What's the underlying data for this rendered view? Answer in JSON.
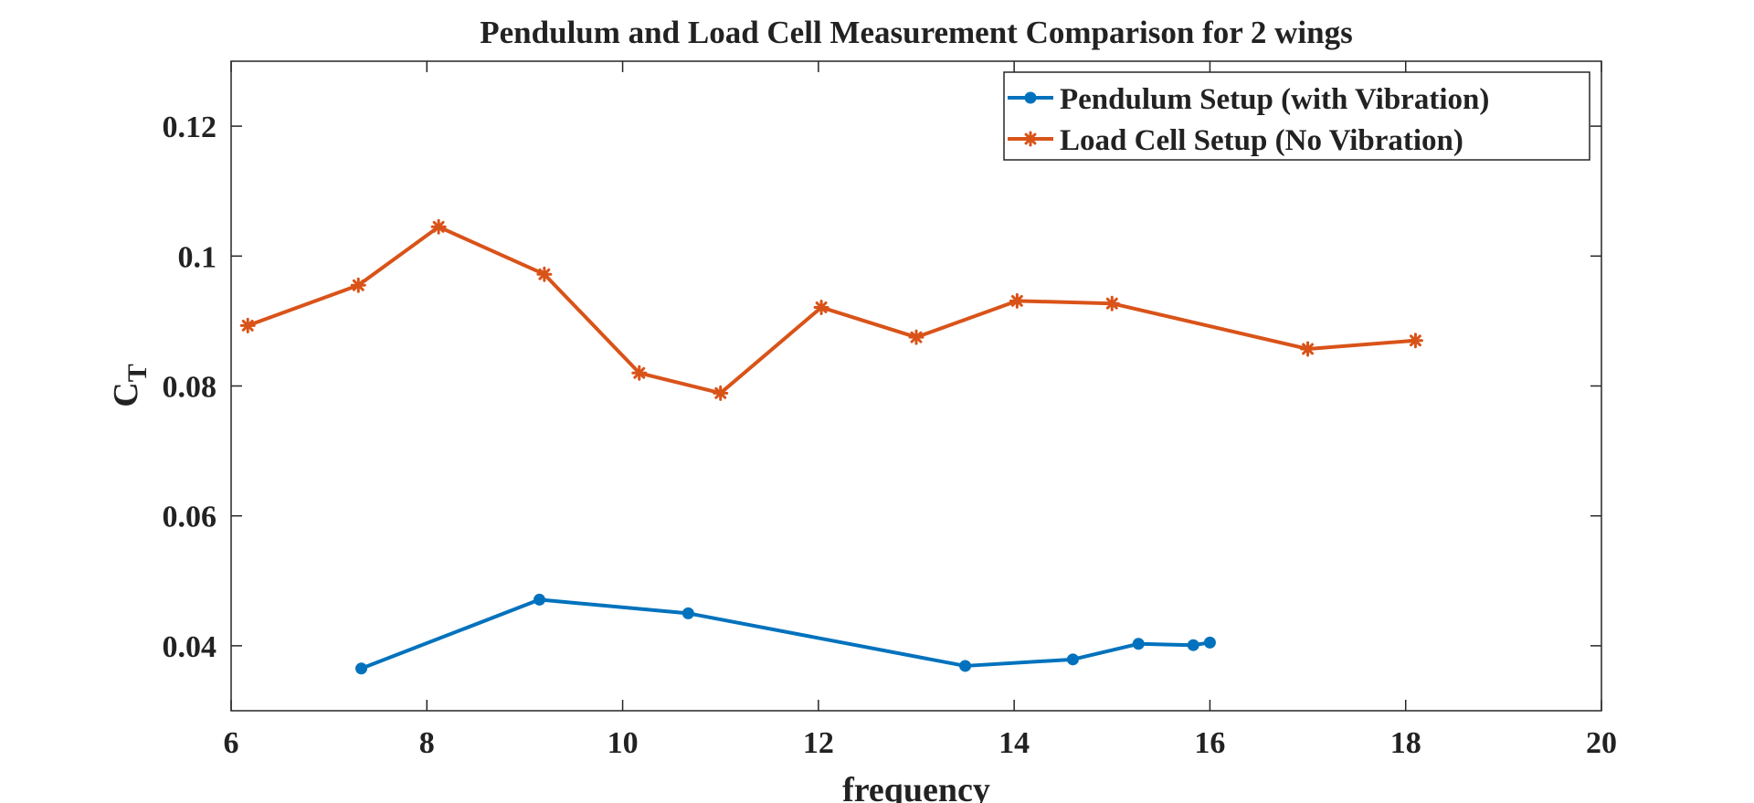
{
  "chart_data": {
    "type": "line",
    "title": "Pendulum and Load Cell Measurement Comparison for 2 wings",
    "xlabel": "frequency",
    "ylabel": "C",
    "ylabel_subscript": "T",
    "xlim": [
      6,
      20
    ],
    "ylim": [
      0.03,
      0.13
    ],
    "xticks": [
      6,
      8,
      10,
      12,
      14,
      16,
      18,
      20
    ],
    "yticks": [
      0.04,
      0.06,
      0.08,
      0.1,
      0.12
    ],
    "ytick_labels": [
      "0.04",
      "0.06",
      "0.08",
      "0.1",
      "0.12"
    ],
    "grid": false,
    "legend_position": "top-right",
    "series": [
      {
        "name": "Pendulum Setup (with Vibration)",
        "color": "#0072BD",
        "marker": "circle",
        "x": [
          7.33,
          9.15,
          10.67,
          13.5,
          14.6,
          15.27,
          15.83,
          16.0
        ],
        "y": [
          0.0365,
          0.0471,
          0.045,
          0.0369,
          0.0379,
          0.0403,
          0.0401,
          0.0405
        ]
      },
      {
        "name": "Load Cell Setup (No Vibration)",
        "color": "#D95319",
        "marker": "asterisk",
        "x": [
          6.17,
          7.3,
          8.12,
          9.2,
          10.17,
          11.0,
          12.03,
          13.0,
          14.03,
          15.0,
          17.0,
          18.1
        ],
        "y": [
          0.0893,
          0.0955,
          0.1045,
          0.0972,
          0.082,
          0.0789,
          0.0921,
          0.0875,
          0.0931,
          0.0927,
          0.0857,
          0.087
        ]
      }
    ]
  }
}
